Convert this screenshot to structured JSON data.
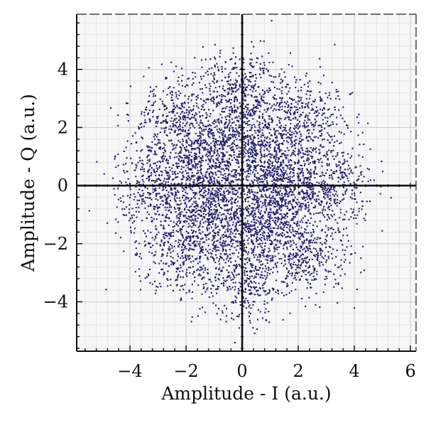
{
  "chart_data": {
    "type": "scatter",
    "title": "",
    "xlabel": "Amplitude - I (a.u.)",
    "ylabel": "Amplitude - Q (a.u.)",
    "xlim": [
      -5.9,
      6.2
    ],
    "ylim": [
      -5.7,
      5.9
    ],
    "x_ticks": [
      -4,
      -2,
      0,
      2,
      4,
      6
    ],
    "y_ticks": [
      -4,
      -2,
      0,
      2,
      4
    ],
    "x_tick_labels": [
      "−4",
      "−2",
      "0",
      "2",
      "4",
      "6"
    ],
    "y_tick_labels": [
      "−4",
      "−2",
      "0",
      "2",
      "4"
    ],
    "minor_grid_step": 0.4,
    "grid": true,
    "crosshair_at_origin": true,
    "marker_color": "#1f1f6e",
    "grid_color": "#dcdcdc",
    "background_color": "#f6f6f6",
    "legend": "none",
    "series": [
      {
        "values_described_as": "dense noisy constellation of ~6000 points forming two concentric irregular rings",
        "ring_centers": [
          {
            "x": 0.0,
            "y": 3.2
          },
          {
            "x": 2.3,
            "y": 2.3
          },
          {
            "x": 3.2,
            "y": 0.0
          },
          {
            "x": 2.3,
            "y": -2.3
          },
          {
            "x": 0.0,
            "y": -3.2
          },
          {
            "x": -2.3,
            "y": -2.3
          },
          {
            "x": -3.2,
            "y": 0.0
          },
          {
            "x": -2.3,
            "y": 2.3
          },
          {
            "x": 0.0,
            "y": 1.5
          },
          {
            "x": 1.5,
            "y": 0.0
          },
          {
            "x": 0.0,
            "y": -1.5
          },
          {
            "x": -1.5,
            "y": 0.0
          },
          {
            "x": 1.05,
            "y": 1.05
          },
          {
            "x": 1.05,
            "y": -1.05
          },
          {
            "x": -1.05,
            "y": -1.05
          },
          {
            "x": -1.05,
            "y": 1.05
          }
        ],
        "outer_ring_radius": 3.2,
        "inner_ring_radius": 1.5,
        "noise_sigma": 0.75,
        "point_count": 6000
      }
    ]
  }
}
